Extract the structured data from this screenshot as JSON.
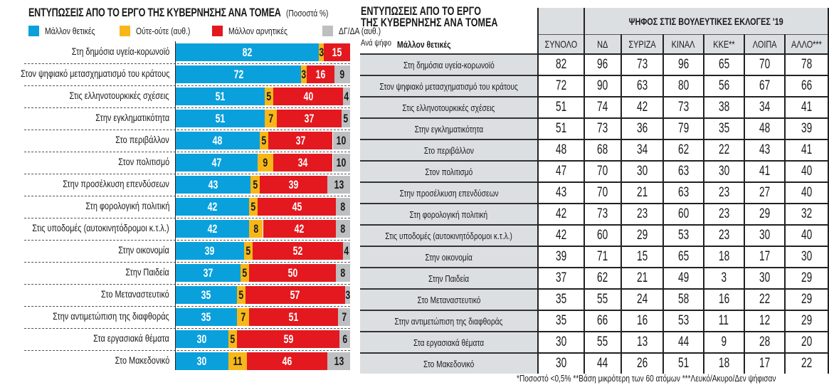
{
  "left_chart": {
    "title": "ΕΝΤΥΠΩΣΕΙΣ ΑΠΟ ΤΟ ΕΡΓΟ ΤΗΣ ΚΥΒΕΡΝΗΣΗΣ ΑΝΑ ΤΟΜΕΑ",
    "unit": "(Ποσοστά %)"
  },
  "right_table": {
    "title_line1": "ΕΝΤΥΠΩΣΕΙΣ ΑΠΟ ΤΟ ΕΡΓΟ",
    "title_line2": "ΤΗΣ ΚΥΒΕΡΝΗΣΗΣ ΑΝΑ ΤΟΜΕΑ",
    "subtitle": "Ανά ψήφο",
    "measure": "Μάλλον θετικές",
    "group_header": "ΨΗΦΟΣ ΣΤΙΣ ΒΟΥΛΕΥΤΙΚΕΣ ΕΚΛΟΓΕΣ '19",
    "columns": [
      "ΣΥΝΟΛΟ",
      "ΝΔ",
      "ΣΥΡΙΖΑ",
      "ΚΙΝΑΛ",
      "ΚΚΕ**",
      "ΛΟΙΠΑ",
      "ΑΛΛΟ***"
    ],
    "footnote": "*Ποσοστό <0,5% **Βάση μικρότερη των 60 ατόμων ***Λευκό/Ακυρο/Δεν ψήφισαν"
  },
  "chart_data": [
    {
      "type": "bar",
      "orientation": "horizontal",
      "stacked": true,
      "title": "ΕΝΤΥΠΩΣΕΙΣ ΑΠΟ ΤΟ ΕΡΓΟ ΤΗΣ ΚΥΒΕΡΝΗΣΗΣ ΑΝΑ ΤΟΜΕΑ",
      "subtitle": "(Ποσοστά %)",
      "xlabel": "",
      "ylabel": "",
      "xlim": [
        0,
        100
      ],
      "grid": false,
      "legend_position": "top-left",
      "categories": [
        "Στη δημόσια υγεία-κορωνοϊό",
        "Στον ψηφιακό μετασχηματισμό του κράτους",
        "Στις ελληνοτουρκικές σχέσεις",
        "Στην εγκληματικότητα",
        "Στο περιβάλλον",
        "Στον πολιτισμό",
        "Στην προσέλκυση επενδύσεων",
        "Στη φορολογική πολιτική",
        "Στις υποδομές (αυτοκινητόδρομοι κ.τ.λ.)",
        "Στην οικονομία",
        "Στην Παιδεία",
        "Στο Μεταναστευτικό",
        "Στην αντιμετώπιση της διαφθοράς",
        "Στα εργασιακά θέματα",
        "Στο Μακεδονικό"
      ],
      "series": [
        {
          "name": "Μάλλον θετικές",
          "color": "#0aa0dc",
          "label_color": "#ffffff",
          "values": [
            82,
            72,
            51,
            51,
            48,
            47,
            43,
            42,
            42,
            39,
            37,
            35,
            35,
            30,
            30
          ]
        },
        {
          "name": "Ούτε-ούτε (αυθ.)",
          "color": "#f7b718",
          "label_color": "#1a1a1a",
          "values": [
            3,
            3,
            5,
            7,
            5,
            9,
            5,
            5,
            8,
            5,
            5,
            5,
            7,
            5,
            11
          ]
        },
        {
          "name": "Μάλλον αρνητικές",
          "color": "#e3191f",
          "label_color": "#ffffff",
          "values": [
            15,
            16,
            40,
            37,
            37,
            34,
            39,
            45,
            42,
            52,
            50,
            57,
            51,
            59,
            46
          ]
        },
        {
          "name": "ΔΓ/ΔΑ (αυθ.)",
          "color": "#bdbfc1",
          "label_color": "#1a1a1a",
          "values": [
            null,
            9,
            4,
            5,
            10,
            10,
            13,
            8,
            8,
            4,
            8,
            3,
            7,
            6,
            13
          ]
        }
      ]
    },
    {
      "type": "table",
      "title": "ΕΝΤΥΠΩΣΕΙΣ ΑΠΟ ΤΟ ΕΡΓΟ ΤΗΣ ΚΥΒΕΡΝΗΣΗΣ ΑΝΑ ΤΟΜΕΑ",
      "subtitle": "Ανά ψήφο — Μάλλον θετικές",
      "group_header": "ΨΗΦΟΣ ΣΤΙΣ ΒΟΥΛΕΥΤΙΚΕΣ ΕΚΛΟΓΕΣ '19",
      "columns": [
        "ΣΥΝΟΛΟ",
        "ΝΔ",
        "ΣΥΡΙΖΑ",
        "ΚΙΝΑΛ",
        "ΚΚΕ**",
        "ΛΟΙΠΑ",
        "ΑΛΛΟ***"
      ],
      "rows": [
        {
          "label": "Στη δημόσια υγεία-κορωνοϊό",
          "values": [
            82,
            96,
            73,
            96,
            65,
            70,
            78
          ]
        },
        {
          "label": "Στον ψηφιακό μετασχηματισμό του κράτους",
          "values": [
            72,
            90,
            63,
            80,
            56,
            67,
            66
          ]
        },
        {
          "label": "Στις ελληνοτουρκικές σχέσεις",
          "values": [
            51,
            74,
            42,
            73,
            38,
            34,
            41
          ]
        },
        {
          "label": "Στην εγκληματικότητα",
          "values": [
            51,
            73,
            36,
            79,
            35,
            48,
            39
          ]
        },
        {
          "label": "Στο περιβάλλον",
          "values": [
            48,
            68,
            34,
            62,
            22,
            43,
            41
          ]
        },
        {
          "label": "Στον πολιτισμό",
          "values": [
            47,
            70,
            30,
            63,
            30,
            41,
            40
          ]
        },
        {
          "label": "Στην προσέλκυση επενδύσεων",
          "values": [
            43,
            70,
            21,
            63,
            23,
            27,
            40
          ]
        },
        {
          "label": "Στη φορολογική πολιτική",
          "values": [
            42,
            73,
            23,
            60,
            23,
            29,
            32
          ]
        },
        {
          "label": "Στις υποδομές (αυτοκινητόδρομοι κ.τ.λ.)",
          "values": [
            42,
            60,
            29,
            53,
            23,
            30,
            40
          ]
        },
        {
          "label": "Στην οικονομία",
          "values": [
            39,
            71,
            15,
            65,
            18,
            17,
            30
          ]
        },
        {
          "label": "Στην Παιδεία",
          "values": [
            37,
            62,
            21,
            49,
            3,
            30,
            29
          ]
        },
        {
          "label": "Στο Μεταναστευτικό",
          "values": [
            35,
            55,
            24,
            58,
            16,
            22,
            29
          ]
        },
        {
          "label": "Στην αντιμετώπιση της διαφθοράς",
          "values": [
            35,
            66,
            16,
            53,
            11,
            12,
            29
          ]
        },
        {
          "label": "Στα εργασιακά θέματα",
          "values": [
            30,
            55,
            13,
            44,
            9,
            28,
            20
          ]
        },
        {
          "label": "Στο Μακεδονικό",
          "values": [
            30,
            44,
            26,
            51,
            18,
            17,
            22
          ]
        }
      ],
      "footnote": "*Ποσοστό <0,5% **Βάση μικρότερη των 60 ατόμων ***Λευκό/Ακυρο/Δεν ψήφισαν"
    }
  ]
}
